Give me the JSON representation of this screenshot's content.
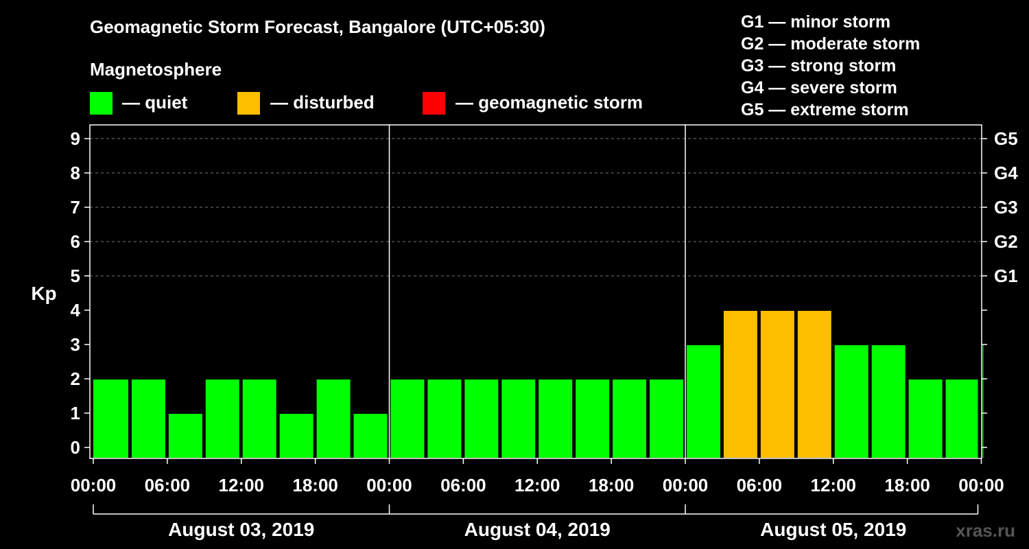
{
  "chart_data": {
    "type": "bar",
    "title": "Geomagnetic Storm Forecast, Bangalore (UTC+05:30)",
    "subtitle": "Magnetosphere",
    "ylabel": "Kp",
    "ylim": [
      0,
      9
    ],
    "yticks": [
      "0",
      "1",
      "2",
      "3",
      "4",
      "5",
      "6",
      "7",
      "8",
      "9"
    ],
    "right_ticks": [
      {
        "kp": 5,
        "label": "G1"
      },
      {
        "kp": 6,
        "label": "G2"
      },
      {
        "kp": 7,
        "label": "G3"
      },
      {
        "kp": 8,
        "label": "G4"
      },
      {
        "kp": 9,
        "label": "G5"
      }
    ],
    "xtick_labels": [
      "00:00",
      "06:00",
      "12:00",
      "18:00",
      "00:00",
      "06:00",
      "12:00",
      "18:00",
      "00:00",
      "06:00",
      "12:00",
      "18:00",
      "00:00"
    ],
    "days": [
      "August 03, 2019",
      "August 04, 2019",
      "August 05, 2019"
    ],
    "values": [
      2,
      2,
      1,
      2,
      2,
      1,
      2,
      1,
      2,
      2,
      2,
      2,
      2,
      2,
      2,
      2,
      3,
      4,
      4,
      4,
      3,
      3,
      2,
      2,
      3
    ],
    "status": [
      "quiet",
      "quiet",
      "quiet",
      "quiet",
      "quiet",
      "quiet",
      "quiet",
      "quiet",
      "quiet",
      "quiet",
      "quiet",
      "quiet",
      "quiet",
      "quiet",
      "quiet",
      "quiet",
      "quiet",
      "disturbed",
      "disturbed",
      "disturbed",
      "quiet",
      "quiet",
      "quiet",
      "quiet",
      "quiet"
    ],
    "legend": [
      {
        "key": "quiet",
        "label": "— quiet",
        "color": "#00ff00"
      },
      {
        "key": "disturbed",
        "label": "— disturbed",
        "color": "#ffbf00"
      },
      {
        "key": "storm",
        "label": "— geomagnetic storm",
        "color": "#ff0000"
      }
    ]
  },
  "storm_scale": [
    "G1 — minor storm",
    "G2 — moderate storm",
    "G3 — strong storm",
    "G4 — severe storm",
    "G5 — extreme storm"
  ],
  "brand": "xras.ru"
}
